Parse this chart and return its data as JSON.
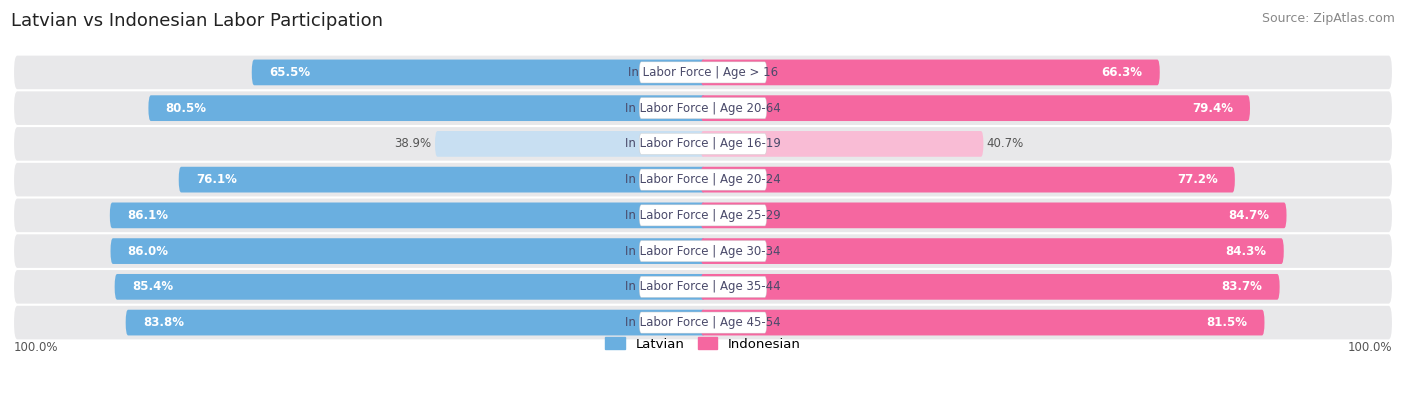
{
  "title": "Latvian vs Indonesian Labor Participation",
  "source": "Source: ZipAtlas.com",
  "categories": [
    "In Labor Force | Age > 16",
    "In Labor Force | Age 20-64",
    "In Labor Force | Age 16-19",
    "In Labor Force | Age 20-24",
    "In Labor Force | Age 25-29",
    "In Labor Force | Age 30-34",
    "In Labor Force | Age 35-44",
    "In Labor Force | Age 45-54"
  ],
  "latvian_values": [
    65.5,
    80.5,
    38.9,
    76.1,
    86.1,
    86.0,
    85.4,
    83.8
  ],
  "indonesian_values": [
    66.3,
    79.4,
    40.7,
    77.2,
    84.7,
    84.3,
    83.7,
    81.5
  ],
  "latvian_color": "#6aafe0",
  "latvian_color_light": "#c8dff2",
  "indonesian_color": "#f567a0",
  "indonesian_color_light": "#f9bcd5",
  "row_bg_color": "#e8e8ea",
  "label_text_color": "#4a4a6a",
  "value_text_white": "#ffffff",
  "value_text_dark": "#555555",
  "max_value": 100.0,
  "legend_latvian": "Latvian",
  "legend_indonesian": "Indonesian",
  "title_fontsize": 13,
  "source_fontsize": 9,
  "bar_value_fontsize": 8.5,
  "label_fontsize": 8.5
}
